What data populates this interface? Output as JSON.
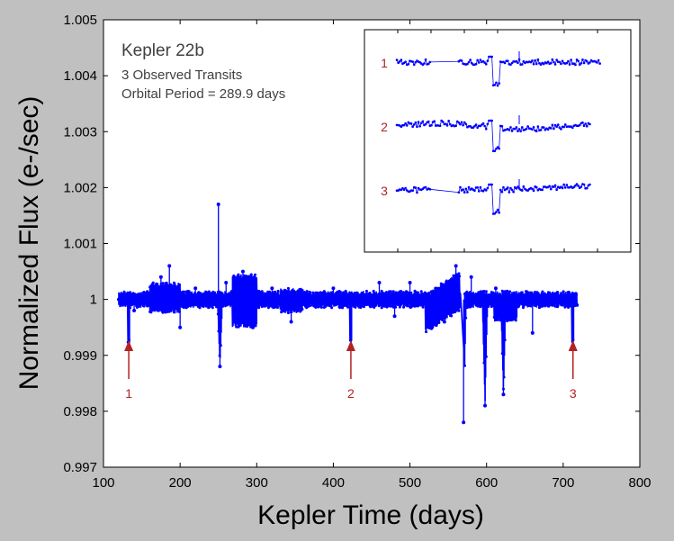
{
  "chart_data": {
    "type": "line",
    "xlabel": "Kepler Time (days)",
    "ylabel": "Normalized Flux (e-/sec)",
    "xlim": [
      100,
      800
    ],
    "ylim": [
      0.997,
      1.005
    ],
    "x_ticks": [
      "100",
      "200",
      "300",
      "400",
      "500",
      "600",
      "700",
      "800"
    ],
    "y_ticks": [
      "0.997",
      "0.998",
      "0.999",
      "1",
      "1.001",
      "1.002",
      "1.003",
      "1.004",
      "1.005"
    ],
    "grid": false,
    "series_color": "#0000ff",
    "annotation_color": "#b22222",
    "text_color": "#404040",
    "annotations": {
      "title": "Kepler 22b",
      "line2": "3 Observed Transits",
      "line3": "Orbital Period = 289.9 days"
    },
    "transits": [
      {
        "label": "1",
        "x": 133.0,
        "depth": 0.9992
      },
      {
        "label": "2",
        "x": 422.9,
        "depth": 0.9992
      },
      {
        "label": "3",
        "x": 712.8,
        "depth": 0.9992
      }
    ],
    "flux_series": {
      "name": "",
      "points": [
        [
          120,
          1.0
        ],
        [
          140,
          0.9998
        ],
        [
          160,
          1.0001
        ],
        [
          175,
          1.0004
        ],
        [
          186,
          1.0006
        ],
        [
          200,
          0.9995
        ],
        [
          220,
          1.0002
        ],
        [
          240,
          1.0001
        ],
        [
          250,
          1.0017
        ],
        [
          252,
          0.9988
        ],
        [
          260,
          1.0003
        ],
        [
          282,
          1.0005
        ],
        [
          295,
          0.9995
        ],
        [
          320,
          1.0002
        ],
        [
          345,
          0.9996
        ],
        [
          365,
          1.0001
        ],
        [
          400,
          1.0002
        ],
        [
          440,
          1.0
        ],
        [
          460,
          1.0003
        ],
        [
          480,
          0.9997
        ],
        [
          500,
          1.0003
        ],
        [
          530,
          1.0001
        ],
        [
          545,
          0.9996
        ],
        [
          560,
          1.0006
        ],
        [
          570,
          0.9978
        ],
        [
          580,
          1.0004
        ],
        [
          598,
          0.9981
        ],
        [
          612,
          1.0002
        ],
        [
          622,
          0.9983
        ],
        [
          640,
          1.0
        ],
        [
          660,
          0.9994
        ],
        [
          690,
          1.0001
        ],
        [
          718,
          0.9999
        ]
      ]
    },
    "inset": {
      "rows": [
        {
          "label": "1",
          "gap": true,
          "dip_depth": 0.0025
        },
        {
          "label": "2",
          "gap": false,
          "dip_depth": 0.0022
        },
        {
          "label": "3",
          "gap": true,
          "dip_depth": 0.002
        }
      ]
    }
  }
}
